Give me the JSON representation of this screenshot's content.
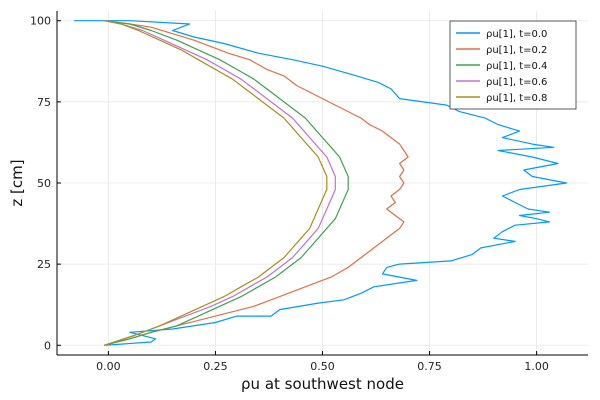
{
  "chart_data": {
    "type": "line",
    "xlabel": "ρu at southwest node",
    "ylabel": "z [cm]",
    "xlim": [
      -0.12,
      1.12
    ],
    "ylim": [
      -3,
      103
    ],
    "x_ticks": [
      0.0,
      0.25,
      0.5,
      0.75,
      1.0
    ],
    "x_tick_labels": [
      "0.00",
      "0.25",
      "0.50",
      "0.75",
      "1.00"
    ],
    "y_ticks": [
      0,
      25,
      50,
      75,
      100
    ],
    "y_tick_labels": [
      "0",
      "25",
      "50",
      "75",
      "100"
    ],
    "grid": true,
    "legend_position": "top-right",
    "series": [
      {
        "name": "ρu[1], t=0.0",
        "color": "#009AFA",
        "points": [
          [
            -0.01,
            0
          ],
          [
            0.1,
            1
          ],
          [
            0.11,
            2
          ],
          [
            0.05,
            4
          ],
          [
            0.15,
            5
          ],
          [
            0.25,
            7
          ],
          [
            0.3,
            9
          ],
          [
            0.38,
            9
          ],
          [
            0.4,
            11
          ],
          [
            0.49,
            13
          ],
          [
            0.55,
            14
          ],
          [
            0.59,
            16
          ],
          [
            0.62,
            18
          ],
          [
            0.72,
            20
          ],
          [
            0.68,
            21
          ],
          [
            0.64,
            22
          ],
          [
            0.65,
            24
          ],
          [
            0.68,
            25
          ],
          [
            0.8,
            26
          ],
          [
            0.85,
            28
          ],
          [
            0.87,
            30
          ],
          [
            0.95,
            32
          ],
          [
            0.9,
            33
          ],
          [
            0.92,
            35
          ],
          [
            0.95,
            37
          ],
          [
            1.03,
            38
          ],
          [
            1.0,
            39
          ],
          [
            0.96,
            40
          ],
          [
            1.03,
            41
          ],
          [
            0.98,
            42
          ],
          [
            0.95,
            44
          ],
          [
            0.92,
            46
          ],
          [
            0.96,
            48
          ],
          [
            1.07,
            50
          ],
          [
            0.99,
            52
          ],
          [
            0.97,
            54
          ],
          [
            1.05,
            56
          ],
          [
            0.99,
            58
          ],
          [
            0.91,
            60
          ],
          [
            1.04,
            61
          ],
          [
            0.99,
            62
          ],
          [
            0.92,
            64
          ],
          [
            0.96,
            66
          ],
          [
            0.91,
            68
          ],
          [
            0.88,
            70
          ],
          [
            0.82,
            72
          ],
          [
            0.79,
            74
          ],
          [
            0.68,
            76
          ],
          [
            0.66,
            79
          ],
          [
            0.63,
            81
          ],
          [
            0.58,
            83
          ],
          [
            0.5,
            86
          ],
          [
            0.43,
            88
          ],
          [
            0.35,
            90
          ],
          [
            0.27,
            93
          ],
          [
            0.2,
            95
          ],
          [
            0.15,
            97
          ],
          [
            0.17,
            98
          ],
          [
            0.19,
            99
          ],
          [
            0.05,
            100
          ],
          [
            -0.08,
            100
          ]
        ]
      },
      {
        "name": "ρu[1], t=0.2",
        "color": "#E26F46",
        "points": [
          [
            -0.01,
            0
          ],
          [
            0.05,
            2
          ],
          [
            0.1,
            4
          ],
          [
            0.16,
            6
          ],
          [
            0.22,
            8
          ],
          [
            0.28,
            10
          ],
          [
            0.34,
            12
          ],
          [
            0.4,
            15
          ],
          [
            0.44,
            17
          ],
          [
            0.48,
            19
          ],
          [
            0.52,
            21
          ],
          [
            0.56,
            24
          ],
          [
            0.58,
            26
          ],
          [
            0.6,
            28
          ],
          [
            0.62,
            30
          ],
          [
            0.64,
            32
          ],
          [
            0.66,
            34
          ],
          [
            0.68,
            36
          ],
          [
            0.69,
            38
          ],
          [
            0.67,
            40
          ],
          [
            0.65,
            42
          ],
          [
            0.67,
            44
          ],
          [
            0.66,
            46
          ],
          [
            0.68,
            48
          ],
          [
            0.69,
            50
          ],
          [
            0.68,
            52
          ],
          [
            0.69,
            54
          ],
          [
            0.68,
            56
          ],
          [
            0.7,
            58
          ],
          [
            0.69,
            60
          ],
          [
            0.68,
            62
          ],
          [
            0.66,
            64
          ],
          [
            0.64,
            66
          ],
          [
            0.61,
            68
          ],
          [
            0.59,
            70
          ],
          [
            0.56,
            72
          ],
          [
            0.53,
            74
          ],
          [
            0.5,
            76
          ],
          [
            0.47,
            78
          ],
          [
            0.44,
            80
          ],
          [
            0.41,
            83
          ],
          [
            0.37,
            85
          ],
          [
            0.33,
            88
          ],
          [
            0.28,
            90
          ],
          [
            0.24,
            92
          ],
          [
            0.2,
            94
          ],
          [
            0.15,
            96
          ],
          [
            0.1,
            98
          ],
          [
            0.05,
            99
          ],
          [
            -0.01,
            100
          ]
        ]
      },
      {
        "name": "ρu[1], t=0.4",
        "color": "#3DA44D",
        "points": [
          [
            -0.01,
            0
          ],
          [
            0.05,
            2
          ],
          [
            0.1,
            4
          ],
          [
            0.16,
            6
          ],
          [
            0.21,
            9
          ],
          [
            0.26,
            12
          ],
          [
            0.31,
            15
          ],
          [
            0.35,
            18
          ],
          [
            0.39,
            21
          ],
          [
            0.42,
            24
          ],
          [
            0.45,
            27
          ],
          [
            0.47,
            30
          ],
          [
            0.49,
            33
          ],
          [
            0.51,
            36
          ],
          [
            0.53,
            39
          ],
          [
            0.54,
            42
          ],
          [
            0.55,
            45
          ],
          [
            0.56,
            48
          ],
          [
            0.56,
            50
          ],
          [
            0.56,
            52
          ],
          [
            0.55,
            55
          ],
          [
            0.54,
            58
          ],
          [
            0.52,
            61
          ],
          [
            0.5,
            64
          ],
          [
            0.48,
            67
          ],
          [
            0.46,
            70
          ],
          [
            0.43,
            73
          ],
          [
            0.4,
            76
          ],
          [
            0.37,
            79
          ],
          [
            0.34,
            82
          ],
          [
            0.3,
            85
          ],
          [
            0.26,
            88
          ],
          [
            0.21,
            91
          ],
          [
            0.16,
            94
          ],
          [
            0.1,
            97
          ],
          [
            0.05,
            99
          ],
          [
            -0.01,
            100
          ]
        ]
      },
      {
        "name": "ρu[1], t=0.6",
        "color": "#C271D2",
        "points": [
          [
            -0.01,
            0
          ],
          [
            0.06,
            3
          ],
          [
            0.12,
            6
          ],
          [
            0.18,
            9
          ],
          [
            0.24,
            12
          ],
          [
            0.29,
            15
          ],
          [
            0.33,
            18
          ],
          [
            0.37,
            21
          ],
          [
            0.4,
            24
          ],
          [
            0.43,
            27
          ],
          [
            0.45,
            30
          ],
          [
            0.47,
            33
          ],
          [
            0.49,
            36
          ],
          [
            0.5,
            39
          ],
          [
            0.51,
            42
          ],
          [
            0.52,
            45
          ],
          [
            0.53,
            48
          ],
          [
            0.53,
            50
          ],
          [
            0.53,
            52
          ],
          [
            0.52,
            55
          ],
          [
            0.51,
            58
          ],
          [
            0.49,
            61
          ],
          [
            0.47,
            64
          ],
          [
            0.45,
            67
          ],
          [
            0.43,
            70
          ],
          [
            0.4,
            73
          ],
          [
            0.37,
            76
          ],
          [
            0.34,
            79
          ],
          [
            0.31,
            82
          ],
          [
            0.27,
            85
          ],
          [
            0.23,
            88
          ],
          [
            0.18,
            91
          ],
          [
            0.13,
            94
          ],
          [
            0.08,
            97
          ],
          [
            0.03,
            99
          ],
          [
            -0.01,
            100
          ]
        ]
      },
      {
        "name": "ρu[1], t=0.8",
        "color": "#AC8D18",
        "points": [
          [
            -0.01,
            0
          ],
          [
            0.06,
            3
          ],
          [
            0.12,
            6
          ],
          [
            0.17,
            9
          ],
          [
            0.22,
            12
          ],
          [
            0.27,
            15
          ],
          [
            0.31,
            18
          ],
          [
            0.35,
            21
          ],
          [
            0.38,
            24
          ],
          [
            0.41,
            27
          ],
          [
            0.43,
            30
          ],
          [
            0.45,
            33
          ],
          [
            0.47,
            36
          ],
          [
            0.48,
            39
          ],
          [
            0.49,
            42
          ],
          [
            0.5,
            45
          ],
          [
            0.51,
            48
          ],
          [
            0.51,
            50
          ],
          [
            0.51,
            52
          ],
          [
            0.5,
            55
          ],
          [
            0.49,
            58
          ],
          [
            0.47,
            61
          ],
          [
            0.45,
            64
          ],
          [
            0.43,
            67
          ],
          [
            0.41,
            70
          ],
          [
            0.38,
            73
          ],
          [
            0.35,
            76
          ],
          [
            0.32,
            79
          ],
          [
            0.29,
            82
          ],
          [
            0.25,
            85
          ],
          [
            0.21,
            88
          ],
          [
            0.17,
            91
          ],
          [
            0.12,
            94
          ],
          [
            0.07,
            97
          ],
          [
            0.03,
            99
          ],
          [
            -0.01,
            100
          ]
        ]
      }
    ]
  }
}
